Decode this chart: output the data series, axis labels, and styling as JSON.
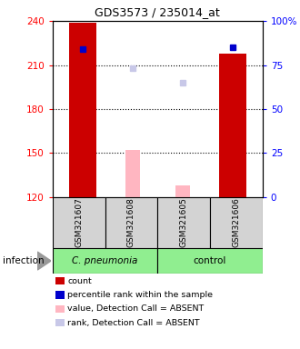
{
  "title": "GDS3573 / 235014_at",
  "samples": [
    "GSM321607",
    "GSM321608",
    "GSM321605",
    "GSM321606"
  ],
  "ylim": [
    120,
    240
  ],
  "yticks_left": [
    120,
    150,
    180,
    210,
    240
  ],
  "yticks_right": [
    0,
    25,
    50,
    75,
    100
  ],
  "bar_values": [
    239,
    120,
    120,
    218
  ],
  "blue_square_y": [
    221,
    null,
    null,
    222
  ],
  "pink_bar_top": [
    null,
    152,
    128,
    null
  ],
  "lavender_square_y": [
    null,
    208,
    198,
    null
  ],
  "bar_color": "#cc0000",
  "blue_color": "#0000cc",
  "pink_color": "#FFB6C1",
  "lavender_color": "#c8c8e8",
  "grid_lines": [
    210,
    180,
    150
  ],
  "legend_items": [
    {
      "color": "#cc0000",
      "label": "count"
    },
    {
      "color": "#0000cc",
      "label": "percentile rank within the sample"
    },
    {
      "color": "#FFB6C1",
      "label": "value, Detection Call = ABSENT"
    },
    {
      "color": "#c8c8e8",
      "label": "rank, Detection Call = ABSENT"
    }
  ],
  "infection_label": "infection",
  "cpneumonia_label": "C. pneumonia",
  "control_label": "control",
  "bg_color": "#ffffff",
  "sample_box_color": "#d3d3d3",
  "pneumonia_box_color": "#90EE90",
  "control_box_color": "#90EE90",
  "bar_width": 0.55,
  "pink_bar_width": 0.3
}
